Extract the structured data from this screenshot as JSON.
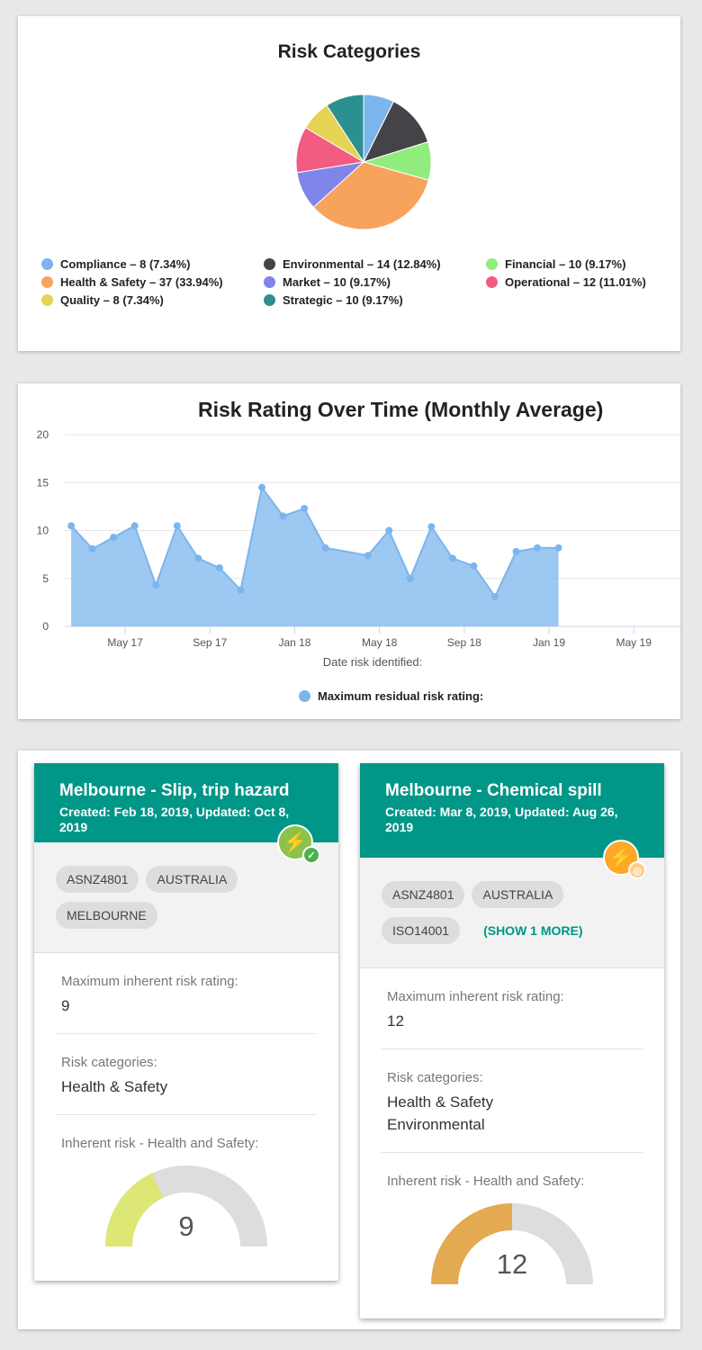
{
  "pie_chart": {
    "title": "Risk Categories",
    "legend": [
      {
        "label": "Compliance – 8 (7.34%)",
        "color": "#7cb5ec"
      },
      {
        "label": "Environmental – 14 (12.84%)",
        "color": "#434348"
      },
      {
        "label": "Financial – 10 (9.17%)",
        "color": "#90ed7d"
      },
      {
        "label": "Health & Safety – 37 (33.94%)",
        "color": "#f7a35c"
      },
      {
        "label": "Market – 10 (9.17%)",
        "color": "#8085e9"
      },
      {
        "label": "Operational – 12 (11.01%)",
        "color": "#f15c80"
      },
      {
        "label": "Quality – 8 (7.34%)",
        "color": "#e4d354"
      },
      {
        "label": "Strategic – 10 (9.17%)",
        "color": "#2b908f"
      }
    ]
  },
  "line_chart": {
    "title": "Risk Rating Over Time (Monthly Average)",
    "x_label": "Date risk identified:",
    "y_ticks": [
      "0",
      "5",
      "10",
      "15",
      "20"
    ],
    "x_ticks": [
      "May 17",
      "Sep 17",
      "Jan 18",
      "May 18",
      "Sep 18",
      "Jan 19",
      "May 19"
    ],
    "series_name": "Maximum residual risk rating:",
    "color": "#7cb5ec"
  },
  "chart_data": [
    {
      "type": "pie",
      "title": "Risk Categories",
      "categories": [
        "Compliance",
        "Environmental",
        "Financial",
        "Health & Safety",
        "Market",
        "Operational",
        "Quality",
        "Strategic"
      ],
      "values": [
        8,
        14,
        10,
        37,
        10,
        12,
        8,
        10
      ],
      "percentages": [
        7.34,
        12.84,
        9.17,
        33.94,
        9.17,
        11.01,
        7.34,
        9.17
      ],
      "colors": [
        "#7cb5ec",
        "#434348",
        "#90ed7d",
        "#f7a35c",
        "#8085e9",
        "#f15c80",
        "#e4d354",
        "#2b908f"
      ],
      "legend_position": "bottom"
    },
    {
      "type": "area",
      "title": "Risk Rating Over Time (Monthly Average)",
      "xlabel": "Date risk identified:",
      "ylabel": "",
      "ylim": [
        0,
        20
      ],
      "x_range": [
        "2017-02",
        "2019-07"
      ],
      "series": [
        {
          "name": "Maximum residual risk rating:",
          "x": [
            "2017-02",
            "2017-03",
            "2017-04",
            "2017-05",
            "2017-06",
            "2017-07",
            "2017-08",
            "2017-09",
            "2017-10",
            "2017-11",
            "2017-12",
            "2018-01",
            "2018-02",
            "2018-04",
            "2018-05",
            "2018-06",
            "2018-07",
            "2018-08",
            "2018-09",
            "2018-10",
            "2018-11",
            "2018-12",
            "2019-01"
          ],
          "values": [
            10.5,
            8.1,
            9.3,
            10.5,
            4.3,
            10.5,
            7.1,
            6.1,
            3.8,
            14.5,
            11.5,
            12.3,
            8.2,
            7.4,
            10.0,
            5.0,
            10.4,
            7.1,
            6.3,
            3.1,
            7.8,
            8.2,
            8.2
          ]
        }
      ],
      "grid": true,
      "legend_position": "bottom"
    }
  ],
  "cards": [
    {
      "title": "Melbourne - Slip, trip hazard",
      "meta": "Created: Feb 18, 2019, Updated: Oct 8, 2019",
      "badge_icon": "⚡",
      "badge_sub_icon": "✓",
      "badge_color": "#8bc34a",
      "badge_sub_color": "#4caf50",
      "tags": [
        "ASNZ4801",
        "AUSTRALIA",
        "MELBOURNE"
      ],
      "show_more": "",
      "inherent_label": "Maximum inherent risk rating:",
      "inherent_value": "9",
      "categories_label": "Risk categories:",
      "categories": [
        "Health & Safety"
      ],
      "gauge_label": "Inherent risk - Health and Safety:",
      "gauge_value": "9",
      "gauge_fraction": 0.36,
      "gauge_color": "#dce775"
    },
    {
      "title": "Melbourne - Chemical spill",
      "meta": "Created: Mar 8, 2019, Updated: Aug 26, 2019",
      "badge_icon": "⚡",
      "badge_sub_icon": "◎",
      "badge_color": "#ffa726",
      "badge_sub_color": "#ffcc80",
      "tags": [
        "ASNZ4801",
        "AUSTRALIA",
        "ISO14001"
      ],
      "show_more": "(SHOW 1 MORE)",
      "inherent_label": "Maximum inherent risk rating:",
      "inherent_value": "12",
      "categories_label": "Risk categories:",
      "categories": [
        "Health & Safety",
        "Environmental"
      ],
      "gauge_label": "Inherent risk - Health and Safety:",
      "gauge_value": "12",
      "gauge_fraction": 0.5,
      "gauge_color": "#e3aa52"
    }
  ]
}
